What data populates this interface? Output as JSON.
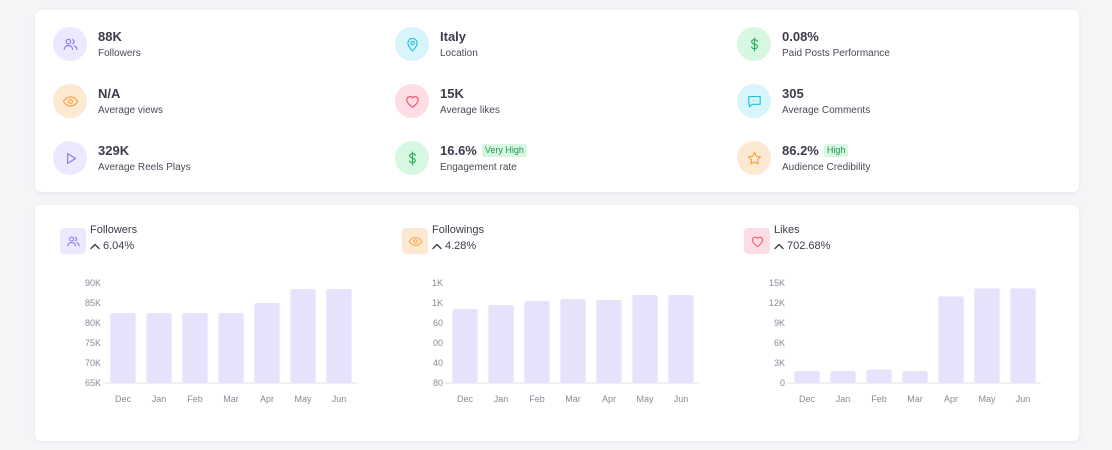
{
  "stats": [
    {
      "value": "88K",
      "label": "Followers",
      "icon": "users-icon",
      "badge": ""
    },
    {
      "value": "Italy",
      "label": "Location",
      "icon": "map-pin-icon",
      "badge": ""
    },
    {
      "value": "0.08%",
      "label": "Paid Posts Performance",
      "icon": "dollar-icon",
      "badge": ""
    },
    {
      "value": "N/A",
      "label": "Average views",
      "icon": "eye-icon",
      "badge": ""
    },
    {
      "value": "15K",
      "label": "Average likes",
      "icon": "heart-icon",
      "badge": ""
    },
    {
      "value": "305",
      "label": "Average Comments",
      "icon": "comment-icon",
      "badge": ""
    },
    {
      "value": "329K",
      "label": "Average Reels Plays",
      "icon": "play-icon",
      "badge": ""
    },
    {
      "value": "16.6%",
      "label": "Engagement rate",
      "icon": "dollar-icon",
      "badge": "Very High"
    },
    {
      "value": "86.2%",
      "label": "Audience Credibility",
      "icon": "star-icon",
      "badge": "High"
    }
  ],
  "colors": {
    "purple_bg": "#ece8fd",
    "purple_fg": "#8b74ea",
    "cyan_bg": "#d8f5fb",
    "cyan_fg": "#1fc1dc",
    "green_bg": "#d7f7e2",
    "green_fg": "#22b35c",
    "orange_bg": "#fde9d2",
    "orange_fg": "#f4a340",
    "red_bg": "#fddde3",
    "red_fg": "#ef5068",
    "bar": "#e6e2fb",
    "axis": "#e3e3ea"
  },
  "chart_data": [
    {
      "type": "bar",
      "title": "Followers",
      "change": "6.04%",
      "icon": "users-icon",
      "categories": [
        "Dec",
        "Jan",
        "Feb",
        "Mar",
        "Apr",
        "May",
        "Jun"
      ],
      "values": [
        82500,
        82500,
        82500,
        82500,
        85000,
        88500,
        88500
      ],
      "yticks": [
        "90K",
        "85K",
        "80K",
        "75K",
        "70K",
        "65K"
      ],
      "ylim": [
        65000,
        90000
      ],
      "grid": false
    },
    {
      "type": "bar",
      "title": "Followings",
      "change": "4.28%",
      "icon": "eye-icon",
      "categories": [
        "Dec",
        "Jan",
        "Feb",
        "Mar",
        "Apr",
        "May",
        "Jun"
      ],
      "values": [
        74,
        78,
        82,
        84,
        83,
        88,
        88
      ],
      "yticks": [
        "1K",
        "1K",
        "60",
        "00",
        "40",
        "80"
      ],
      "ylim": [
        0,
        100
      ],
      "grid": false
    },
    {
      "type": "bar",
      "title": "Likes",
      "change": "702.68%",
      "icon": "heart-icon",
      "categories": [
        "Dec",
        "Jan",
        "Feb",
        "Mar",
        "Apr",
        "May",
        "Jun"
      ],
      "values": [
        1800,
        1800,
        2000,
        1800,
        13000,
        14200,
        14200
      ],
      "yticks": [
        "15K",
        "12K",
        "9K",
        "6K",
        "3K",
        "0"
      ],
      "ylim": [
        0,
        15000
      ],
      "grid": false
    }
  ]
}
